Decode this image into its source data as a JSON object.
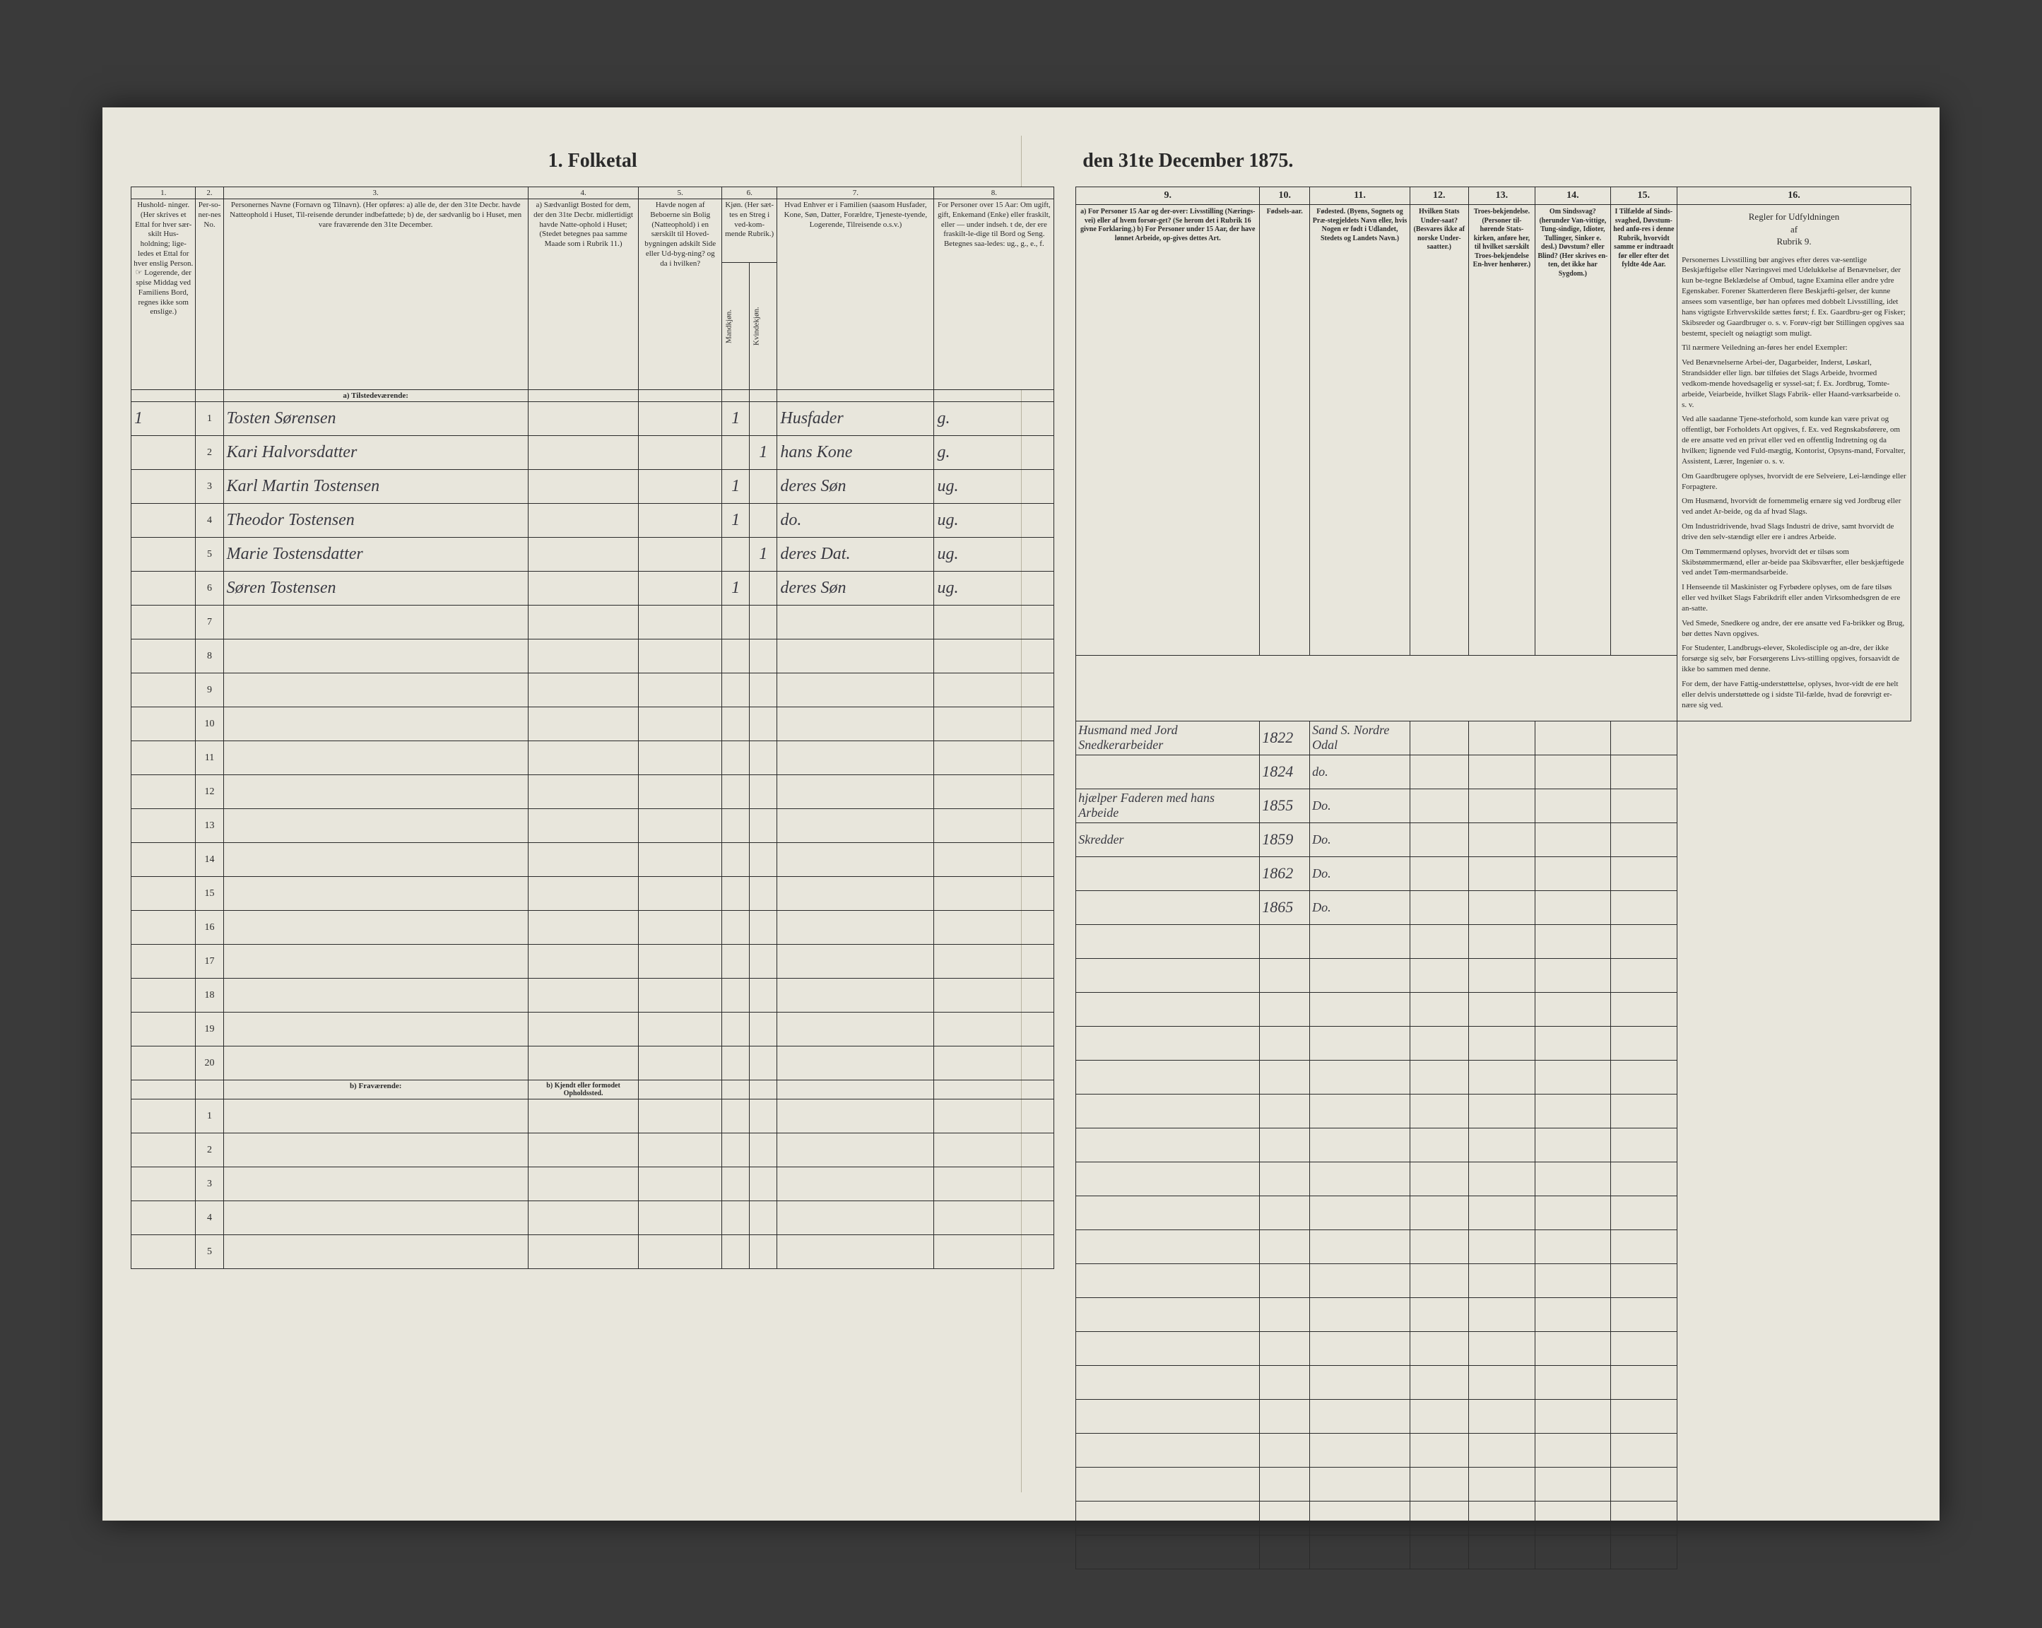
{
  "title_left": "1. Folketal",
  "title_right": "den 31te December 1875.",
  "left": {
    "col_numbers": [
      "1.",
      "2.",
      "3.",
      "4.",
      "5.",
      "6.",
      "7.",
      "8."
    ],
    "headers": {
      "c1": "Hushold-\nninger.\n(Her skrives et Ettal for hver sær-skilt Hus-holdning; lige-ledes et Ettal for hver enslig Person.\n☞ Logerende, der spise Middag ved Familiens Bord, regnes ikke som enslige.)",
      "c2": "Per-so-ner-nes No.",
      "c3": "Personernes Navne (Fornavn og Tilnavn).\n(Her opføres:\na) alle de, der den 31te Decbr. havde Natteophold i Huset, Til-reisende derunder indbefattede;\nb) de, der sædvanlig bo i Huset, men vare fraværende den 31te December.",
      "c4": "a) Sædvanligt Bosted for dem, der den 31te Decbr. midlertidigt havde Natte-ophold i Huset;\n(Stedet betegnes paa samme Maade som i Rubrik 11.)",
      "c5": "Havde nogen af Beboerne sin Bolig (Natteophold) i en særskilt til Hoved-bygningen adskilt Side eller Ud-byg-ning? og da i hvilken?",
      "c6": "Kjøn.\n(Her sæt-tes en Streg i ved-kom-mende Rubrik.)",
      "c6a": "Mandkjøn.",
      "c6b": "Kvindekjøn.",
      "c7": "Hvad Enhver er i Familien\n(saasom Husfader, Kone, Søn, Datter, Forældre, Tjeneste-tyende, Logerende, Tilreisende o.s.v.)",
      "c8": "For Personer over 15 Aar: Om ugift, gift, Enkemand (Enke) eller fraskilt, eller — under indseh. t de, der ere fraskilt-le-dige til Bord og Seng.\nBetegnes saa-ledes:\nug., g., e., f."
    },
    "section_a": "a) Tilstedeværende:",
    "section_b": "b) Fraværende:",
    "section_b_col4": "b) Kjendt eller formodet Opholdssted.",
    "rows_a": [
      {
        "hh": "1",
        "no": "1",
        "name": "Tosten Sørensen",
        "c4": "",
        "c5": "",
        "mk": "1",
        "kk": "",
        "rel": "Husfader",
        "civ": "g."
      },
      {
        "hh": "",
        "no": "2",
        "name": "Kari Halvorsdatter",
        "c4": "",
        "c5": "",
        "mk": "",
        "kk": "1",
        "rel": "hans Kone",
        "civ": "g."
      },
      {
        "hh": "",
        "no": "3",
        "name": "Karl Martin Tostensen",
        "c4": "",
        "c5": "",
        "mk": "1",
        "kk": "",
        "rel": "deres Søn",
        "civ": "ug."
      },
      {
        "hh": "",
        "no": "4",
        "name": "Theodor Tostensen",
        "c4": "",
        "c5": "",
        "mk": "1",
        "kk": "",
        "rel": "do.",
        "civ": "ug."
      },
      {
        "hh": "",
        "no": "5",
        "name": "Marie Tostensdatter",
        "c4": "",
        "c5": "",
        "mk": "",
        "kk": "1",
        "rel": "deres Dat.",
        "civ": "ug."
      },
      {
        "hh": "",
        "no": "6",
        "name": "Søren Tostensen",
        "c4": "",
        "c5": "",
        "mk": "1",
        "kk": "",
        "rel": "deres Søn",
        "civ": "ug."
      }
    ],
    "empty_a": [
      7,
      8,
      9,
      10,
      11,
      12,
      13,
      14,
      15,
      16,
      17,
      18,
      19,
      20
    ],
    "empty_b": [
      1,
      2,
      3,
      4,
      5
    ]
  },
  "right": {
    "col_numbers": [
      "9.",
      "10.",
      "11.",
      "12.",
      "13.",
      "14.",
      "15.",
      "16."
    ],
    "headers": {
      "c9": "a) For Personer 15 Aar og der-over: Livsstilling (Nærings-vei) eller af hvem forsør-get? (Se herom det i Rubrik 16 givne Forklaring.)\nb) For Personer under 15 Aar, der have lønnet Arbeide, op-gives dettes Art.",
      "c10": "Fødsels-aar.",
      "c11": "Fødested.\n(Byens, Sognets og Præ-stegjeldets Navn eller, hvis Nogen er født i Udlandet, Stedets og Landets Navn.)",
      "c12": "Hvilken Stats Under-saat?\n(Besvares ikke af norske Under-saatter.)",
      "c13": "Troes-bekjendelse.\n(Personer til-hørende Stats-kirken, anføre her, til hvilket særskilt Troes-bekjendelse En-hver henhører.)",
      "c14": "Om Sindssvag?\n(herunder Van-vittige, Tung-sindige, Idioter, Tullinger, Sinker e. desl.)\nDøvstum? eller Blind?\n(Her skrives en-ten, det ikke har Sygdom.)",
      "c15": "I Tilfælde af Sinds-svaghed, Døvstum-hed anfø-res i denne Rubrik, hvorvidt samme er indtraadt før eller efter det fyldte 4de Aar.",
      "c16_title": "Regler for Udfyldningen\naf\nRubrik 9."
    },
    "rows": [
      {
        "c9": "Husmand med Jord Snedkerarbeider",
        "c10": "1822",
        "c11": "Sand S. Nordre Odal",
        "c12": "",
        "c13": "",
        "c14": "",
        "c15": ""
      },
      {
        "c9": "",
        "c10": "1824",
        "c11": "do.",
        "c12": "",
        "c13": "",
        "c14": "",
        "c15": ""
      },
      {
        "c9": "hjælper Faderen med hans Arbeide",
        "c10": "1855",
        "c11": "Do.",
        "c12": "",
        "c13": "",
        "c14": "",
        "c15": ""
      },
      {
        "c9": "Skredder",
        "c10": "1859",
        "c11": "Do.",
        "c12": "",
        "c13": "",
        "c14": "",
        "c15": ""
      },
      {
        "c9": "",
        "c10": "1862",
        "c11": "Do.",
        "c12": "",
        "c13": "",
        "c14": "",
        "c15": ""
      },
      {
        "c9": "",
        "c10": "1865",
        "c11": "Do.",
        "c12": "",
        "c13": "",
        "c14": "",
        "c15": ""
      }
    ],
    "rules_paras": [
      "Personernes Livsstilling bør angives efter deres væ-sentlige Beskjæftigelse eller Næringsvei med Udelukkelse af Benævnelser, der kun be-tegne Beklædelse af Ombud, tagne Examina eller andre ydre Egenskaber. Forener Skatterderen flere Beskjæfti-gelser, der kunne ansees som væsentlige, bør han opføres med dobbelt Livsstilling, idet hans vigtigste Erhvervskilde sættes først; f. Ex. Gaardbru-ger og Fisker; Skibsreder og Gaardbruger o. s. v. Forøv-rigt bør Stillingen opgives saa bestemt, specielt og nøiagtigt som muligt.",
      "Til nærmere Veiledning an-føres her endel Exempler:",
      "Ved Benævnelserne Arbei-der, Dagarbeider, Inderst, Løskarl, Strandsidder eller lign. bør tilføies det Slags Arbeide, hvormed vedkom-mende hovedsagelig er syssel-sat; f. Ex. Jordbrug, Tomte-arbeide, Veiarbeide, hvilket Slags Fabrik- eller Haand-værksarbeide o. s. v.",
      "Ved alle saadanne Tjene-steforhold, som kunde kan være privat og offentligt, bør Forholdets Art opgives, f. Ex. ved Regnskabsførere, om de ere ansatte ved en privat eller ved en offentlig Indretning og da hvilken; lignende ved Fuld-mægtig, Kontorist, Opsyns-mand, Forvalter, Assistent, Lærer, Ingeniør o. s. v.",
      "Om Gaardbrugere oplyses, hvorvidt de ere Selveiere, Lei-lændinge eller Forpagtere.",
      "Om Husmænd, hvorvidt de fornemmelig ernære sig ved Jordbrug eller ved andet Ar-beide, og da af hvad Slags.",
      "Om Industridrivende, hvad Slags Industri de drive, samt hvorvidt de drive den selv-stændigt eller ere i andres Arbeide.",
      "Om Tømmermænd oplyses, hvorvidt det er tilsøs som Skibstømmermænd, eller ar-beide paa Skibsværfter, eller beskjæftigede ved andet Tøm-mermandsarbeide.",
      "I Henseende til Maskinister og Fyrbødere oplyses, om de fare tilsøs eller ved hvilket Slags Fabrikdrift eller anden Virksomhedsgren de ere an-satte.",
      "Ved Smede, Snedkere og andre, der ere ansatte ved Fa-brikker og Brug, bør dettes Navn opgives.",
      "For Studenter, Landbrugs-elever, Skoledisciple og an-dre, der ikke forsørge sig selv, bør Forsørgerens Livs-stilling opgives, forsaavidt de ikke bo sammen med denne.",
      "For dem, der have Fattig-understøttelse, oplyses, hvor-vidt de ere helt eller delvis understøttede og i sidste Til-fælde, hvad de forøvrigt er-nære sig ved."
    ]
  }
}
